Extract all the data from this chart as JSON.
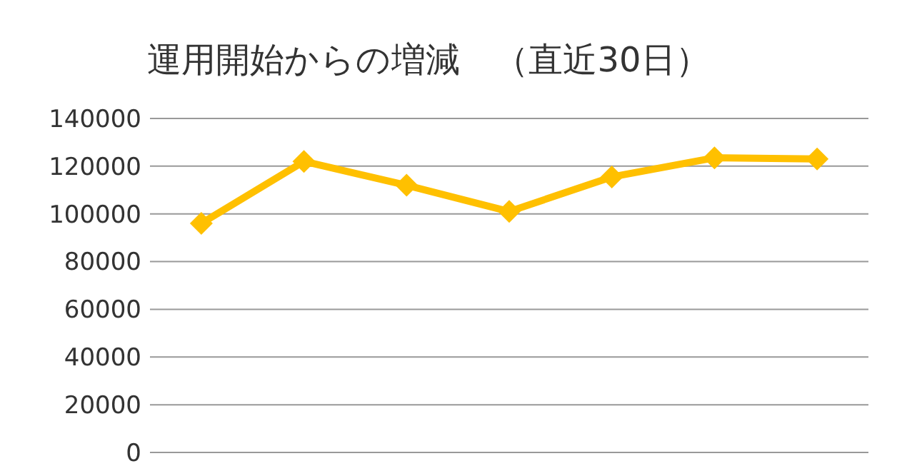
{
  "chart_data": {
    "type": "line",
    "title": "運用開始からの増減　（直近30日）",
    "categories": [
      null,
      null,
      null,
      null,
      null,
      null,
      null
    ],
    "series": [
      {
        "color": "#ffc000",
        "values": [
          96000,
          122000,
          112000,
          101000,
          115500,
          123500,
          123000
        ]
      }
    ],
    "ylim": [
      0,
      140000
    ],
    "yticks": [
      0,
      20000,
      40000,
      60000,
      80000,
      100000,
      120000,
      140000
    ],
    "grid": "y",
    "marker": "diamond",
    "line_style": "solid"
  }
}
